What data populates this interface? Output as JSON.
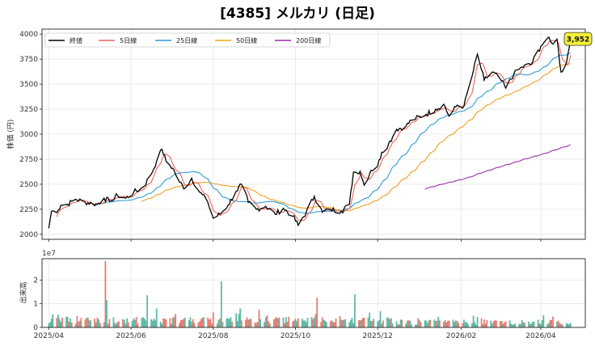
{
  "chart_data": [
    {
      "type": "line",
      "title": "[4385] メルカリ (日足)",
      "ylabel": "株価 (円)",
      "ylim": [
        1950,
        4050
      ],
      "yticks": [
        2000,
        2250,
        2500,
        2750,
        3000,
        3250,
        3500,
        3750,
        4000
      ],
      "xlim": [
        "2025-03-27",
        "2026-05-04"
      ],
      "xticks": [
        "2025/04",
        "2025/06",
        "2025/08",
        "2025/10",
        "2025/12",
        "2026/02",
        "2026/04"
      ],
      "xtick_dates": [
        "2025-04-01",
        "2025-06-01",
        "2025-08-01",
        "2025-10-01",
        "2025-12-01",
        "2026-02-01",
        "2026-04-01"
      ],
      "grid": true,
      "legend_position": "top-left",
      "last_price_label": "3,952",
      "series": [
        {
          "name": "終値",
          "color": "#000000",
          "ma": 1
        },
        {
          "name": "5日線",
          "color": "#e8665c",
          "ma": 5
        },
        {
          "name": "25日線",
          "color": "#2e9bd6",
          "ma": 25
        },
        {
          "name": "50日線",
          "color": "#f0a020",
          "ma": 50
        },
        {
          "name": "200日線",
          "color": "#9a2fa8",
          "ma": 200
        }
      ],
      "close_anchors": [
        [
          "2025-04-01",
          2060
        ],
        [
          "2025-04-03",
          2230
        ],
        [
          "2025-04-08",
          2240
        ],
        [
          "2025-04-10",
          2290
        ],
        [
          "2025-04-15",
          2300
        ],
        [
          "2025-04-21",
          2350
        ],
        [
          "2025-04-28",
          2320
        ],
        [
          "2025-05-07",
          2300
        ],
        [
          "2025-05-12",
          2360
        ],
        [
          "2025-05-16",
          2330
        ],
        [
          "2025-05-22",
          2390
        ],
        [
          "2025-05-28",
          2360
        ],
        [
          "2025-06-03",
          2420
        ],
        [
          "2025-06-10",
          2470
        ],
        [
          "2025-06-16",
          2600
        ],
        [
          "2025-06-20",
          2730
        ],
        [
          "2025-06-24",
          2850
        ],
        [
          "2025-06-27",
          2730
        ],
        [
          "2025-07-02",
          2660
        ],
        [
          "2025-07-07",
          2520
        ],
        [
          "2025-07-11",
          2460
        ],
        [
          "2025-07-16",
          2560
        ],
        [
          "2025-07-22",
          2420
        ],
        [
          "2025-07-28",
          2320
        ],
        [
          "2025-08-01",
          2160
        ],
        [
          "2025-08-06",
          2200
        ],
        [
          "2025-08-12",
          2290
        ],
        [
          "2025-08-18",
          2430
        ],
        [
          "2025-08-22",
          2500
        ],
        [
          "2025-08-27",
          2320
        ],
        [
          "2025-09-02",
          2250
        ],
        [
          "2025-09-09",
          2280
        ],
        [
          "2025-09-16",
          2200
        ],
        [
          "2025-09-22",
          2260
        ],
        [
          "2025-09-29",
          2180
        ],
        [
          "2025-10-03",
          2090
        ],
        [
          "2025-10-09",
          2220
        ],
        [
          "2025-10-15",
          2380
        ],
        [
          "2025-10-21",
          2220
        ],
        [
          "2025-10-27",
          2250
        ],
        [
          "2025-11-04",
          2230
        ],
        [
          "2025-11-10",
          2300
        ],
        [
          "2025-11-13",
          2620
        ],
        [
          "2025-11-18",
          2630
        ],
        [
          "2025-11-21",
          2490
        ],
        [
          "2025-11-26",
          2640
        ],
        [
          "2025-12-01",
          2680
        ],
        [
          "2025-12-04",
          2820
        ],
        [
          "2025-12-09",
          2900
        ],
        [
          "2025-12-15",
          3050
        ],
        [
          "2025-12-22",
          3080
        ],
        [
          "2025-12-26",
          3140
        ],
        [
          "2026-01-06",
          3200
        ],
        [
          "2026-01-13",
          3250
        ],
        [
          "2026-01-19",
          3300
        ],
        [
          "2026-01-23",
          3180
        ],
        [
          "2026-01-29",
          3290
        ],
        [
          "2026-02-03",
          3280
        ],
        [
          "2026-02-06",
          3440
        ],
        [
          "2026-02-09",
          3580
        ],
        [
          "2026-02-13",
          3800
        ],
        [
          "2026-02-18",
          3540
        ],
        [
          "2026-02-24",
          3620
        ],
        [
          "2026-03-02",
          3550
        ],
        [
          "2026-03-06",
          3460
        ],
        [
          "2026-03-12",
          3600
        ],
        [
          "2026-03-18",
          3670
        ],
        [
          "2026-03-25",
          3700
        ],
        [
          "2026-04-01",
          3880
        ],
        [
          "2026-04-06",
          3960
        ],
        [
          "2026-04-09",
          3910
        ],
        [
          "2026-04-13",
          3950
        ],
        [
          "2026-04-16",
          3620
        ],
        [
          "2026-04-20",
          3710
        ],
        [
          "2026-04-23",
          3952
        ]
      ]
    },
    {
      "type": "bar",
      "ylabel": "出来高",
      "scale_label": "1e7",
      "ylim": [
        0,
        29000000
      ],
      "yticks": [
        0,
        1,
        2
      ],
      "up_color": "#5fb8a4",
      "down_color": "#e77c72",
      "volume_spikes": [
        [
          "2025-05-13",
          28000000
        ],
        [
          "2025-05-14",
          11500000
        ],
        [
          "2025-06-13",
          13500000
        ],
        [
          "2025-08-07",
          19500000
        ],
        [
          "2025-10-17",
          12500000
        ],
        [
          "2025-11-14",
          14000000
        ],
        [
          "2025-06-20",
          8000000
        ],
        [
          "2025-08-21",
          8000000
        ],
        [
          "2025-09-04",
          7500000
        ]
      ]
    }
  ]
}
